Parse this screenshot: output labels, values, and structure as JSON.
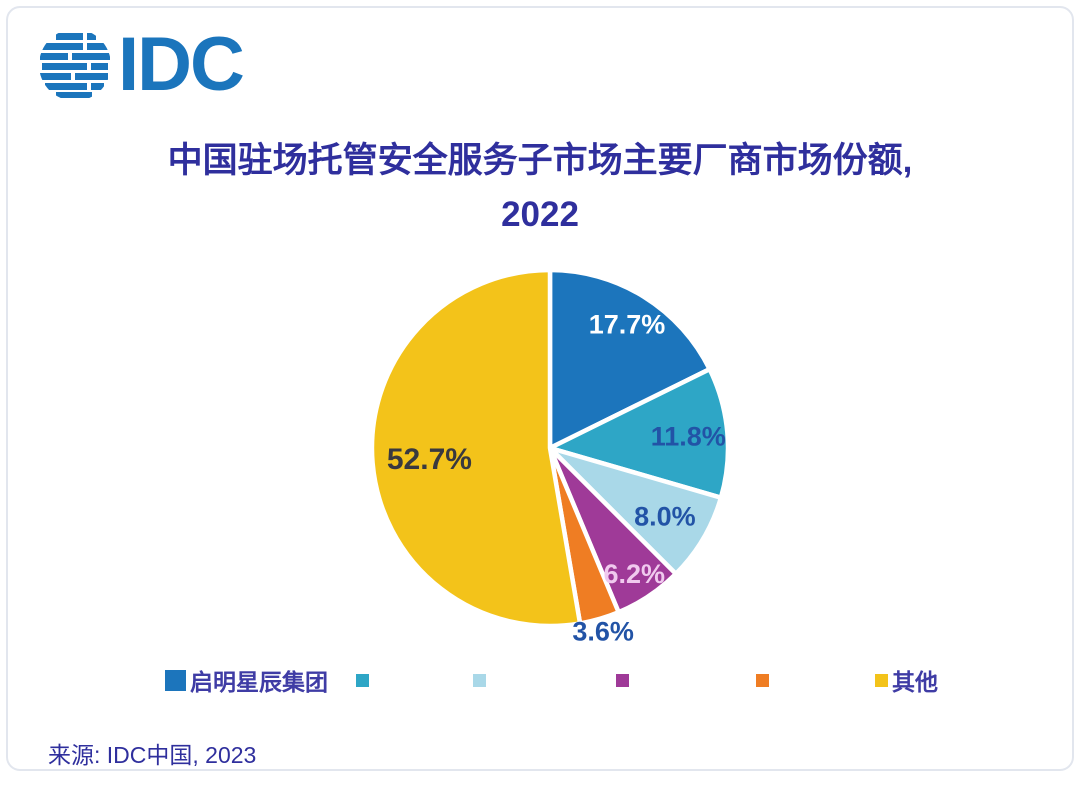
{
  "logo": {
    "text": "IDC",
    "color": "#1b75bc"
  },
  "title": {
    "line1": "中国驻场托管安全服务子市场主要厂商市场份额,",
    "line2": "2022",
    "color": "#2f2f9d"
  },
  "chart_data": {
    "type": "pie",
    "title": "中国驻场托管安全服务子市场主要厂商市场份额, 2022",
    "start_angle_deg": 0,
    "direction": "clockwise",
    "slices": [
      {
        "label": "启明星辰集团",
        "value": 17.7,
        "display": "17.7%",
        "color": "#1c75bc",
        "label_color": "#ffffff"
      },
      {
        "label": "",
        "value": 11.8,
        "display": "11.8%",
        "color": "#2ea6c6",
        "label_color": "#2253a6"
      },
      {
        "label": "",
        "value": 8.0,
        "display": "8.0%",
        "color": "#a9d8e8",
        "label_color": "#2253a6"
      },
      {
        "label": "",
        "value": 6.2,
        "display": "6.2%",
        "color": "#9f3a98",
        "label_color": "#f0c9ee"
      },
      {
        "label": "",
        "value": 3.6,
        "display": "3.6%",
        "color": "#ef7d23",
        "label_color": "#2253a6"
      },
      {
        "label": "其他",
        "value": 52.7,
        "display": "52.7%",
        "color": "#f3c31a",
        "label_color": "#39393f"
      }
    ],
    "legend_position": "bottom",
    "grid": false
  },
  "legend": {
    "text_color": "#3f3ca5"
  },
  "source": {
    "text": "来源: IDC中国, 2023"
  }
}
